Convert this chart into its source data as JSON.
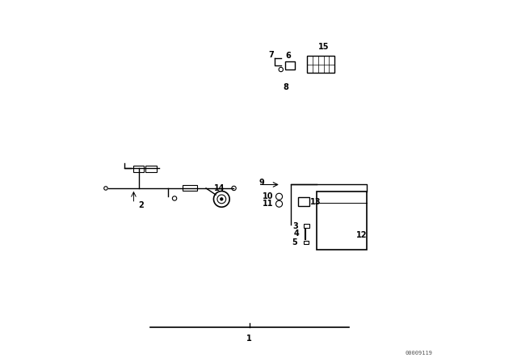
{
  "bg_color": "#ffffff",
  "line_color": "#000000",
  "fig_width": 6.4,
  "fig_height": 4.48,
  "dpi": 100,
  "watermark": "00009119"
}
